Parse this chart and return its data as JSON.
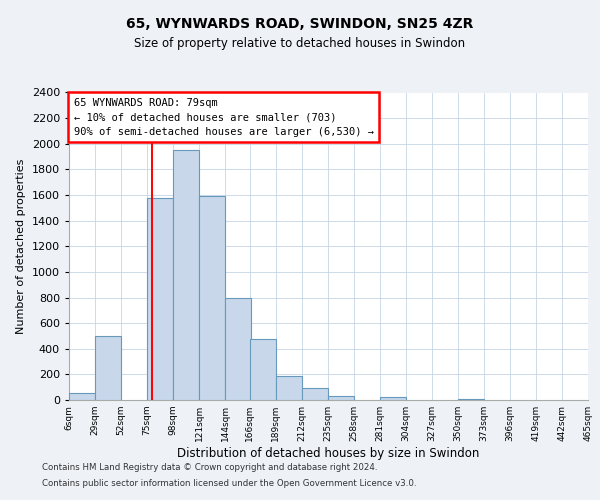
{
  "title": "65, WYNWARDS ROAD, SWINDON, SN25 4ZR",
  "subtitle": "Size of property relative to detached houses in Swindon",
  "xlabel": "Distribution of detached houses by size in Swindon",
  "ylabel": "Number of detached properties",
  "bin_labels": [
    "6sqm",
    "29sqm",
    "52sqm",
    "75sqm",
    "98sqm",
    "121sqm",
    "144sqm",
    "166sqm",
    "189sqm",
    "212sqm",
    "235sqm",
    "258sqm",
    "281sqm",
    "304sqm",
    "327sqm",
    "350sqm",
    "373sqm",
    "396sqm",
    "419sqm",
    "442sqm",
    "465sqm"
  ],
  "bin_edges": [
    6,
    29,
    52,
    75,
    98,
    121,
    144,
    166,
    189,
    212,
    235,
    258,
    281,
    304,
    327,
    350,
    373,
    396,
    419,
    442,
    465
  ],
  "bar_heights": [
    55,
    500,
    0,
    1580,
    1950,
    1590,
    800,
    480,
    190,
    90,
    30,
    0,
    20,
    0,
    0,
    10,
    0,
    0,
    0,
    0
  ],
  "bar_color": "#c8d8ea",
  "bar_edge_color": "#6699bb",
  "red_line_x": 79,
  "ylim": [
    0,
    2400
  ],
  "yticks": [
    0,
    200,
    400,
    600,
    800,
    1000,
    1200,
    1400,
    1600,
    1800,
    2000,
    2200,
    2400
  ],
  "annotation_lines": [
    "65 WYNWARDS ROAD: 79sqm",
    "← 10% of detached houses are smaller (703)",
    "90% of semi-detached houses are larger (6,530) →"
  ],
  "footer_lines": [
    "Contains HM Land Registry data © Crown copyright and database right 2024.",
    "Contains public sector information licensed under the Open Government Licence v3.0."
  ],
  "bg_color": "#eef2f7",
  "plot_bg_color": "#ffffff",
  "grid_color": "#c5d5e5"
}
